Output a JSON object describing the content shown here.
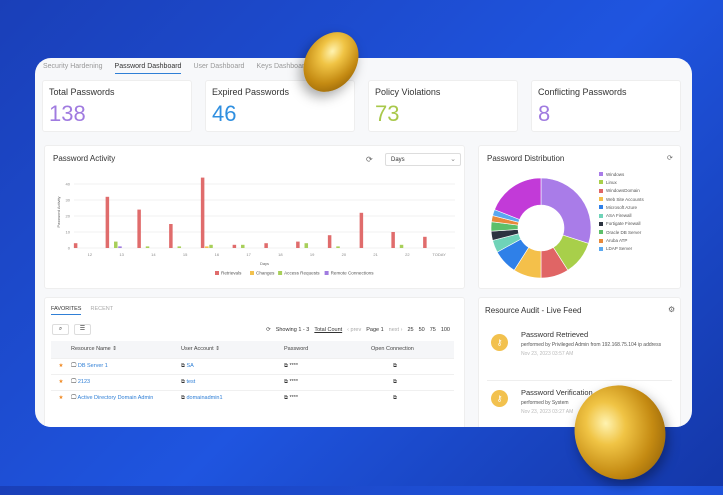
{
  "tabs": [
    "Security Hardening",
    "Password Dashboard",
    "User Dashboard",
    "Keys Dashboard"
  ],
  "active_tab": 1,
  "stats": [
    {
      "label": "Total Passwords",
      "value": "138",
      "color": "#a07be0"
    },
    {
      "label": "Expired Passwords",
      "value": "46",
      "color": "#2f8fe0"
    },
    {
      "label": "Policy Violations",
      "value": "73",
      "color": "#a8c84a"
    },
    {
      "label": "Conflicting Passwords",
      "value": "8",
      "color": "#a07be0"
    }
  ],
  "activity": {
    "title": "Password Activity",
    "period": "Days",
    "refresh_icon": "refresh-icon"
  },
  "distribution": {
    "title": "Password Distribution"
  },
  "chart_data": [
    {
      "type": "bar",
      "title": "Password Activity",
      "xlabel": "Days",
      "ylabel": "Password Activity",
      "ylim": [
        0,
        45
      ],
      "yticks": [
        0,
        10,
        20,
        30,
        40
      ],
      "grid": true,
      "legend": "bottom",
      "categories": [
        "12",
        "13",
        "14",
        "15",
        "16",
        "17",
        "18",
        "19",
        "20",
        "21",
        "22",
        "TODAY"
      ],
      "series": [
        {
          "name": "Retrievals",
          "color": "#e06c6c",
          "values": [
            3,
            32,
            24,
            15,
            44,
            2,
            3,
            4,
            8,
            22,
            10,
            7
          ]
        },
        {
          "name": "Changes",
          "color": "#f2c14e",
          "values": [
            0,
            0,
            0,
            0,
            1,
            0,
            0,
            0,
            0,
            0,
            0,
            0
          ]
        },
        {
          "name": "Access Requests",
          "color": "#a8cf5a",
          "values": [
            0,
            4,
            1,
            1,
            2,
            2,
            0,
            3,
            1,
            0,
            2,
            0
          ]
        },
        {
          "name": "Remote Connections",
          "color": "#a07be0",
          "values": [
            0,
            1,
            0,
            0,
            0,
            0,
            0,
            0,
            0,
            0,
            0,
            0
          ]
        }
      ]
    },
    {
      "type": "pie",
      "title": "Password Distribution",
      "legend": "right",
      "slices": [
        {
          "name": "Windows",
          "value": 30,
          "color": "#a97ce8"
        },
        {
          "name": "Linux",
          "value": 11,
          "color": "#a8cf4a"
        },
        {
          "name": "WindowsDomain",
          "value": 9,
          "color": "#e06565"
        },
        {
          "name": "Web Site Accounts",
          "value": 9,
          "color": "#f4c04a"
        },
        {
          "name": "Microsoft Azure",
          "value": 8,
          "color": "#2f80e8"
        },
        {
          "name": "ASA Firewall",
          "value": 4,
          "color": "#6fd3b8"
        },
        {
          "name": "Fortigate Firewall",
          "value": 3,
          "color": "#2c3340"
        },
        {
          "name": "Oracle DB Server",
          "value": 3,
          "color": "#5cbf6a"
        },
        {
          "name": "Aruba ATP",
          "value": 2,
          "color": "#e8893a"
        },
        {
          "name": "LDAP Server",
          "value": 2,
          "color": "#5aa8f0"
        },
        {
          "name": "",
          "value": 19,
          "color": "#c23ad8"
        }
      ]
    }
  ],
  "favorites": {
    "tabs": [
      "FAVORITES",
      "RECENT"
    ],
    "showing": "Showing 1 - 3",
    "total_count": "Total Count",
    "prev": "‹ prev",
    "page": "Page 1",
    "next": "next ›",
    "sizes": [
      "25",
      "50",
      "75",
      "100"
    ],
    "columns": [
      "Resource Name",
      "User Account",
      "Password",
      "Open Connection"
    ],
    "rows": [
      {
        "resource": "DB Server 1",
        "account": "SA",
        "password": "****"
      },
      {
        "resource": "2123",
        "account": "test",
        "password": "****"
      },
      {
        "resource": "Active Directory Domain Admin",
        "account": "domainadmin1",
        "password": "****"
      }
    ]
  },
  "feed": {
    "title": "Resource Audit - Live Feed",
    "items": [
      {
        "title": "Password Retrieved",
        "desc": "performed by Privileged Admin from 192.168.75.104 ip address",
        "time": "Nov 23, 2023 03:57 AM"
      },
      {
        "title": "Password Verification",
        "desc": "performed by System",
        "time": "Nov 23, 2023 03:27 AM"
      }
    ]
  }
}
